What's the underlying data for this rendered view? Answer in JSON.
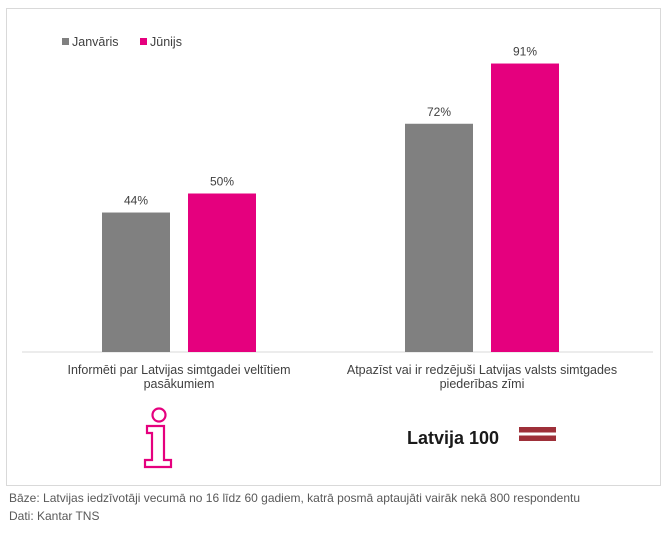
{
  "chart_data": {
    "type": "bar",
    "categories": [
      [
        "Informēti par Latvijas simtgadei veltītiem",
        "pasākumiem"
      ],
      [
        "Atpazīst vai ir redzējuši Latvijas valsts simtgades",
        "piederības zīmi"
      ]
    ],
    "series": [
      {
        "name": "Janvāris",
        "values": [
          44,
          72
        ],
        "labels": [
          "44%",
          "72%"
        ],
        "color": "#808080"
      },
      {
        "name": "Jūnijs",
        "values": [
          50,
          91
        ],
        "labels": [
          "50%",
          "91%"
        ],
        "color": "#e5007e"
      }
    ],
    "ylim": [
      0,
      100
    ],
    "grid": false,
    "legend_position": "top-left",
    "icons": [
      {
        "name": "info-icon",
        "color": "#e5007e"
      },
      {
        "name": "latvija-100-logo",
        "text": "Latvija 100",
        "color_text": "#1a1a1a",
        "color_flag": "#9e3039"
      }
    ]
  },
  "footer": {
    "base": "Bāze: Latvijas iedzīvotāji vecumā no 16 līdz 60 gadiem, katrā posmā aptaujāti vairāk nekā 800 respondentu",
    "source": "Dati: Kantar TNS"
  }
}
